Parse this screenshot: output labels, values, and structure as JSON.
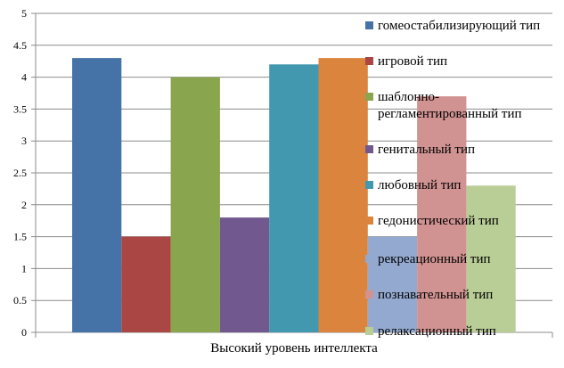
{
  "chart_data": {
    "type": "bar",
    "title": "",
    "xlabel": "",
    "ylabel": "",
    "categories": [
      "Высокий уровень интеллекта"
    ],
    "ylim": [
      0,
      5
    ],
    "yticks": [
      "0",
      "0.5",
      "1",
      "1.5",
      "2",
      "2.5",
      "3",
      "3.5",
      "4",
      "4.5",
      "5"
    ],
    "grid": true,
    "legend_position": "right",
    "series": [
      {
        "name": "гомеостабилизирующий тип",
        "values": [
          4.3
        ],
        "color": "#4572a7"
      },
      {
        "name": "игровой тип",
        "values": [
          1.5
        ],
        "color": "#aa4643"
      },
      {
        "name": "шаблонно-регламентированный тип",
        "label_lines": [
          "шаблонно-",
          "регламентированный тип"
        ],
        "values": [
          4.0
        ],
        "color": "#89a54e"
      },
      {
        "name": "генитальный тип",
        "values": [
          1.8
        ],
        "color": "#71588f"
      },
      {
        "name": "любовный тип",
        "values": [
          4.2
        ],
        "color": "#4198af"
      },
      {
        "name": "гедонистический тип",
        "values": [
          4.3
        ],
        "color": "#db843d"
      },
      {
        "name": "рекреационный тип",
        "values": [
          1.5
        ],
        "color": "#93a9cf"
      },
      {
        "name": "познавательный тип",
        "values": [
          3.7
        ],
        "color": "#d19392"
      },
      {
        "name": "релаксационный тип",
        "values": [
          2.3
        ],
        "color": "#b9cd96"
      }
    ]
  }
}
